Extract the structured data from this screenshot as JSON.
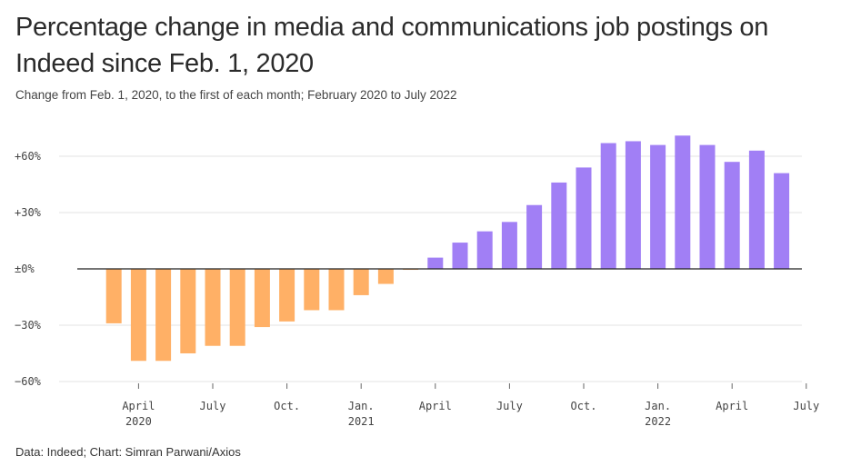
{
  "header": {
    "title": "Percentage change in media and communications job postings on Indeed since Feb. 1, 2020",
    "subtitle": "Change from Feb. 1, 2020, to the first of each month; February 2020 to July 2022"
  },
  "footer": {
    "source": "Data: Indeed; Chart: Simran Parwani/Axios"
  },
  "chart_data": {
    "type": "bar",
    "categories": [
      "Feb 2020",
      "Mar 2020",
      "Apr 2020",
      "May 2020",
      "Jun 2020",
      "Jul 2020",
      "Aug 2020",
      "Sep 2020",
      "Oct 2020",
      "Nov 2020",
      "Dec 2020",
      "Jan 2021",
      "Feb 2021",
      "Mar 2021",
      "Apr 2021",
      "May 2021",
      "Jun 2021",
      "Jul 2021",
      "Aug 2021",
      "Sep 2021",
      "Oct 2021",
      "Nov 2021",
      "Dec 2021",
      "Jan 2022",
      "Feb 2022",
      "Mar 2022",
      "Apr 2022",
      "May 2022",
      "Jun 2022",
      "Jul 2022"
    ],
    "values": [
      0,
      -29,
      -49,
      -49,
      -45,
      -41,
      -41,
      -31,
      -28,
      -22,
      -22,
      -14,
      -8,
      -0.5,
      6,
      14,
      20,
      25,
      34,
      46,
      54,
      67,
      68,
      66,
      71,
      66,
      57,
      63,
      51,
      0
    ],
    "ylim": [
      -60,
      75
    ],
    "yticks": [
      60,
      30,
      0,
      -30,
      -60
    ],
    "ytick_labels": [
      "+60%",
      "+30%",
      "±0%",
      "−30%",
      "−60%"
    ],
    "xtick_labels": [
      {
        "cat": 2,
        "line1": "April",
        "line2": "2020"
      },
      {
        "cat": 5,
        "line1": "July",
        "line2": ""
      },
      {
        "cat": 8,
        "line1": "Oct.",
        "line2": ""
      },
      {
        "cat": 11,
        "line1": "Jan.",
        "line2": "2021"
      },
      {
        "cat": 14,
        "line1": "April",
        "line2": ""
      },
      {
        "cat": 17,
        "line1": "July",
        "line2": ""
      },
      {
        "cat": 20,
        "line1": "Oct.",
        "line2": ""
      },
      {
        "cat": 23,
        "line1": "Jan.",
        "line2": "2022"
      },
      {
        "cat": 26,
        "line1": "April",
        "line2": ""
      },
      {
        "cat": 29,
        "line1": "July",
        "line2": ""
      }
    ],
    "colors": {
      "negative": "#ffb066",
      "positive": "#a17ff5",
      "zero_line": "#222222",
      "grid": "#e3e3e3"
    },
    "grid": true
  }
}
